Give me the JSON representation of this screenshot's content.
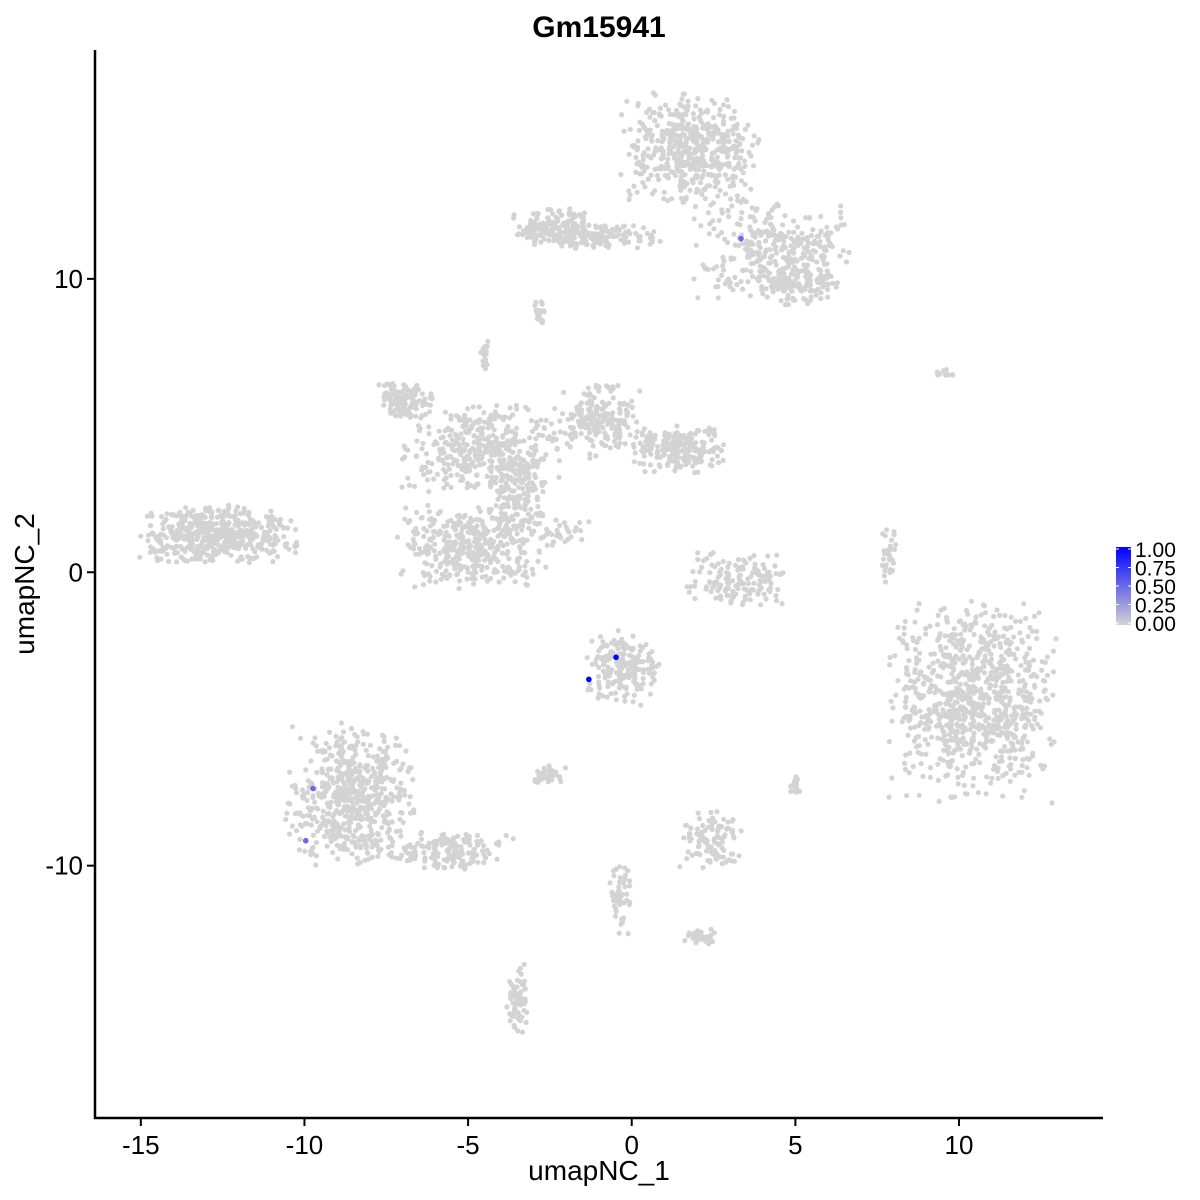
{
  "chart_data": {
    "type": "scatter",
    "title": "Gm15941",
    "xlabel": "umapNC_1",
    "ylabel": "umapNC_2",
    "xlim": [
      -16.4,
      14.4
    ],
    "ylim": [
      -18.6,
      17.8
    ],
    "xticks": [
      -15,
      -10,
      -5,
      0,
      5,
      10
    ],
    "yticks": [
      -10,
      0,
      10
    ],
    "grid": false,
    "legend": {
      "placement": "right",
      "type": "colorbar",
      "ticks": [
        "0.00",
        "0.25",
        "0.50",
        "0.75",
        "1.00"
      ],
      "low_color": "#d3d3d3",
      "high_color": "#0000ff"
    },
    "background_point_color": "#d3d3d3",
    "clusters": [
      {
        "cx": 1.8,
        "cy": 14.4,
        "sx": 1.3,
        "sy": 1.2,
        "n": 500
      },
      {
        "cx": 4.3,
        "cy": 11.0,
        "sx": 1.5,
        "sy": 1.1,
        "n": 320
      },
      {
        "cx": 5.1,
        "cy": 9.8,
        "sx": 0.8,
        "sy": 0.5,
        "n": 100
      },
      {
        "cx": -1.2,
        "cy": 11.45,
        "sx": 1.4,
        "sy": 0.25,
        "n": 160
      },
      {
        "cx": -2.3,
        "cy": 11.8,
        "sx": 0.8,
        "sy": 0.4,
        "n": 120
      },
      {
        "cx": -12.7,
        "cy": 1.3,
        "sx": 1.5,
        "sy": 0.6,
        "n": 520
      },
      {
        "cx": -4.6,
        "cy": 4.2,
        "sx": 1.5,
        "sy": 0.9,
        "n": 400
      },
      {
        "cx": -6.9,
        "cy": 5.9,
        "sx": 0.6,
        "sy": 0.4,
        "n": 120
      },
      {
        "cx": -0.95,
        "cy": 5.2,
        "sx": 0.8,
        "sy": 0.8,
        "n": 200
      },
      {
        "cx": 1.5,
        "cy": 4.2,
        "sx": 0.9,
        "sy": 0.5,
        "n": 200
      },
      {
        "cx": -4.9,
        "cy": 0.9,
        "sx": 1.4,
        "sy": 0.9,
        "n": 400
      },
      {
        "cx": -3.4,
        "cy": 2.8,
        "sx": 0.5,
        "sy": 1.0,
        "n": 150
      },
      {
        "cx": 3.2,
        "cy": -0.3,
        "sx": 1.0,
        "sy": 0.6,
        "n": 150
      },
      {
        "cx": 10.4,
        "cy": -4.4,
        "sx": 1.6,
        "sy": 2.1,
        "n": 850
      },
      {
        "cx": -0.3,
        "cy": -3.3,
        "sx": 0.7,
        "sy": 0.8,
        "n": 200
      },
      {
        "cx": -8.6,
        "cy": -7.6,
        "sx": 1.2,
        "sy": 1.5,
        "n": 600
      },
      {
        "cx": -5.5,
        "cy": -9.5,
        "sx": 1.2,
        "sy": 0.4,
        "n": 150
      },
      {
        "cx": -2.5,
        "cy": -6.9,
        "sx": 0.3,
        "sy": 0.2,
        "n": 50
      },
      {
        "cx": 2.4,
        "cy": -9.1,
        "sx": 0.6,
        "sy": 0.6,
        "n": 100
      },
      {
        "cx": -3.5,
        "cy": -14.6,
        "sx": 0.2,
        "sy": 0.8,
        "n": 60
      },
      {
        "cx": -0.35,
        "cy": -11.0,
        "sx": 0.2,
        "sy": 0.8,
        "n": 50
      },
      {
        "cx": 7.9,
        "cy": 0.6,
        "sx": 0.15,
        "sy": 0.6,
        "n": 30
      },
      {
        "cx": -2.8,
        "cy": 8.8,
        "sx": 0.1,
        "sy": 0.3,
        "n": 20
      },
      {
        "cx": -4.5,
        "cy": 7.4,
        "sx": 0.1,
        "sy": 0.3,
        "n": 20
      },
      {
        "cx": 2.1,
        "cy": -12.4,
        "sx": 0.3,
        "sy": 0.2,
        "n": 30
      },
      {
        "cx": -2.0,
        "cy": 1.3,
        "sx": 0.5,
        "sy": 0.3,
        "n": 30
      },
      {
        "cx": 5.0,
        "cy": -7.3,
        "sx": 0.1,
        "sy": 0.2,
        "n": 20
      },
      {
        "cx": 9.6,
        "cy": 6.8,
        "sx": 0.2,
        "sy": 0.1,
        "n": 10
      }
    ],
    "expressing_points": [
      {
        "x": 3.34,
        "y": 11.37,
        "value": 0.5
      },
      {
        "x": -9.74,
        "y": -7.37,
        "value": 0.5
      },
      {
        "x": -9.96,
        "y": -9.15,
        "value": 0.5
      },
      {
        "x": -0.48,
        "y": -2.9,
        "value": 1.0
      },
      {
        "x": -1.31,
        "y": -3.65,
        "value": 1.0
      }
    ]
  }
}
